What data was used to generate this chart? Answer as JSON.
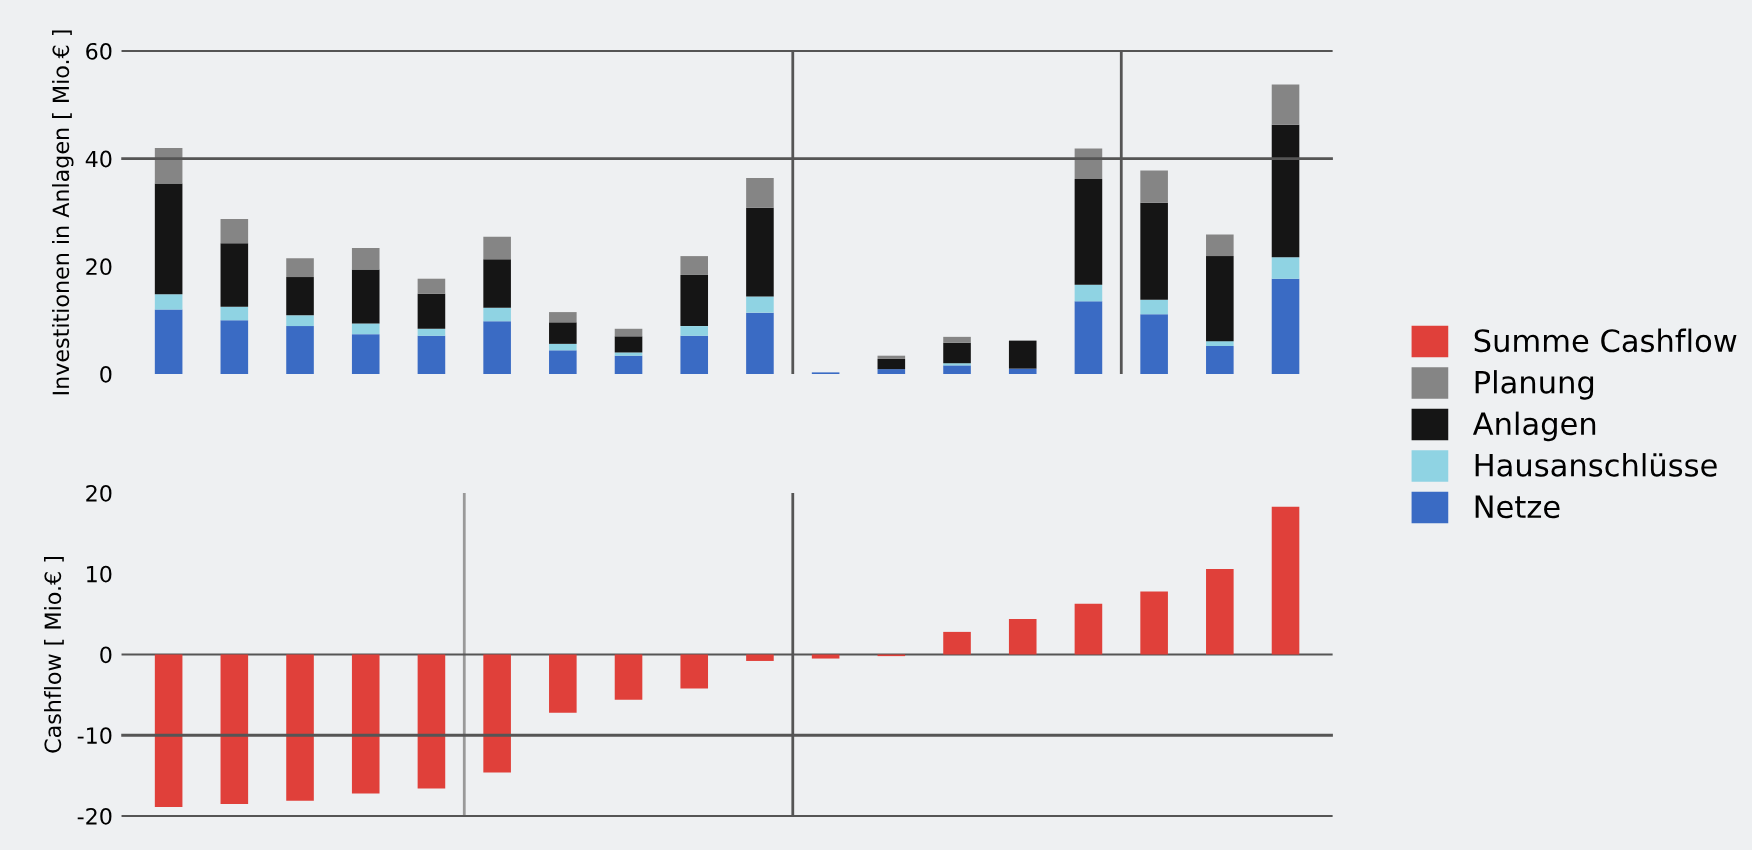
{
  "chart_data": [
    {
      "type": "bar",
      "stacked": true,
      "ylabel": "Investitionen in Anlagen [ Mio.€ ]",
      "categories": [
        null,
        null,
        null,
        null,
        null,
        null,
        null,
        null,
        null,
        null,
        null,
        null,
        null,
        null,
        null,
        null,
        null,
        null
      ],
      "series": [
        {
          "name": "Netze",
          "color": "#3a6bc4",
          "values": [
            12,
            10,
            8.9,
            7.4,
            7.1,
            9.8,
            4.4,
            3.4,
            7.1,
            11.4,
            0.3,
            0.9,
            1.6,
            1,
            13.5,
            11.1,
            5.2,
            17.7
          ]
        },
        {
          "name": "Hausanschlüsse",
          "color": "#8fd3e3",
          "values": [
            2.8,
            2.5,
            2,
            2,
            1.3,
            2.5,
            1.2,
            0.6,
            1.8,
            3,
            0,
            0,
            0.4,
            0,
            3.1,
            2.7,
            0.9,
            4
          ]
        },
        {
          "name": "Anlagen",
          "color": "#151515",
          "values": [
            20.6,
            11.8,
            7.1,
            10,
            6.5,
            9,
            4,
            3,
            9.5,
            16.5,
            0,
            1.9,
            3.8,
            5.2,
            19.6,
            18,
            15.8,
            24.6
          ]
        },
        {
          "name": "Planung",
          "color": "#858585",
          "values": [
            6.6,
            4.5,
            3.5,
            4,
            2.8,
            4.2,
            1.9,
            1.4,
            3.5,
            5.5,
            0,
            0.6,
            1.1,
            0,
            5.7,
            6,
            4,
            7.5
          ]
        }
      ],
      "ylim": [
        0,
        60
      ],
      "yticks": [
        0,
        20,
        40,
        60
      ],
      "ref_lines": [
        {
          "axis": "y",
          "value": 40,
          "color": "#555555"
        }
      ],
      "legend": "right"
    },
    {
      "type": "bar",
      "ylabel": "Cashflow [ Mio.€ ]",
      "categories": [
        null,
        null,
        null,
        null,
        null,
        null,
        null,
        null,
        null,
        null,
        null,
        null,
        null,
        null,
        null,
        null,
        null,
        null
      ],
      "series": [
        {
          "name": "Summe Cashflow",
          "color": "#e0403a",
          "values": [
            -18.9,
            -18.5,
            -18.1,
            -17.2,
            -16.6,
            -14.6,
            -7.2,
            -5.6,
            -4.2,
            -0.8,
            -0.5,
            -0.2,
            2.8,
            4.4,
            6.3,
            7.8,
            10.6,
            18.3
          ]
        }
      ],
      "ylim": [
        -20,
        20
      ],
      "yticks": [
        -20,
        -10,
        0,
        10,
        20
      ],
      "ref_lines": [
        {
          "axis": "y",
          "value": -10,
          "color": "#555555"
        }
      ],
      "legend": "right"
    }
  ]
}
